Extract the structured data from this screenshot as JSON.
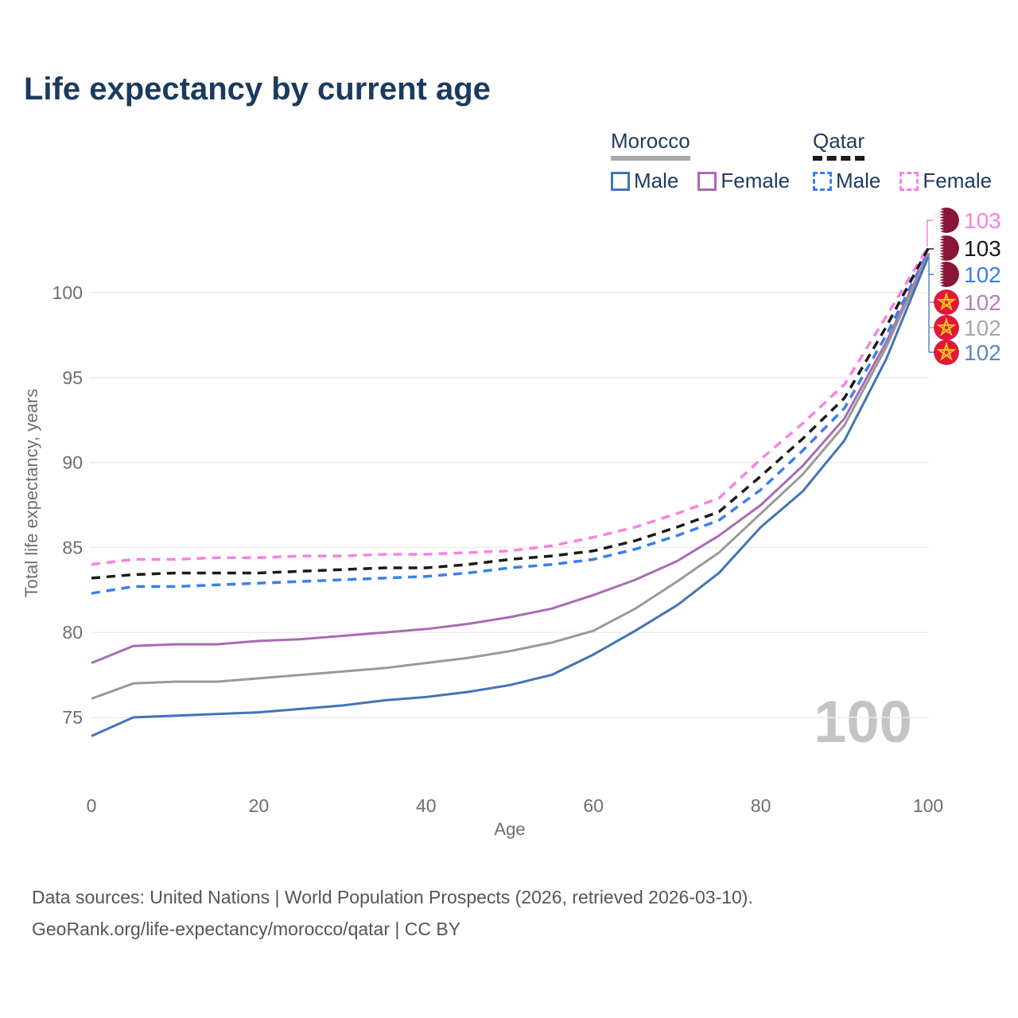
{
  "title": "Life expectancy by current age",
  "legend": {
    "groups": [
      {
        "name": "Morocco",
        "line_style": "solid",
        "underline_color": "#a8a8a8",
        "items": [
          {
            "label": "Male",
            "color": "#4472b8"
          },
          {
            "label": "Female",
            "color": "#a86bb3"
          }
        ]
      },
      {
        "name": "Qatar",
        "line_style": "dashed",
        "underline_color": "#1a1a1a",
        "items": [
          {
            "label": "Male",
            "color": "#3a7ef2"
          },
          {
            "label": "Female",
            "color": "#fb80e3"
          }
        ]
      }
    ]
  },
  "chart_data": {
    "type": "line",
    "title": "Life expectancy by current age",
    "xlabel": "Age",
    "ylabel": "Total life expectancy, years",
    "x_ticks": [
      0,
      20,
      40,
      60,
      80,
      100
    ],
    "y_ticks": [
      75,
      80,
      85,
      90,
      95,
      100
    ],
    "xlim": [
      0,
      100
    ],
    "ylim": [
      73,
      103.5
    ],
    "grid": "horizontal-only",
    "legend_position": "top-right",
    "watermark": "100",
    "ages": [
      0,
      5,
      10,
      15,
      20,
      25,
      30,
      35,
      40,
      45,
      50,
      55,
      60,
      65,
      70,
      75,
      80,
      85,
      90,
      95,
      100
    ],
    "series": [
      {
        "name": "Qatar Female",
        "country": "Qatar",
        "sex": "Female",
        "color": "#fb80e3",
        "dash": true,
        "values": [
          84.0,
          84.3,
          84.3,
          84.4,
          84.4,
          84.5,
          84.5,
          84.6,
          84.6,
          84.7,
          84.8,
          85.1,
          85.6,
          86.2,
          87.0,
          87.9,
          90.2,
          92.3,
          94.6,
          98.6,
          102.7
        ],
        "end_label": "103"
      },
      {
        "name": "Qatar Both sexes",
        "country": "Qatar",
        "sex": "Both",
        "color": "#1a1a1a",
        "dash": true,
        "values": [
          83.2,
          83.4,
          83.5,
          83.5,
          83.5,
          83.6,
          83.7,
          83.8,
          83.8,
          84.0,
          84.3,
          84.5,
          84.8,
          85.4,
          86.2,
          87.1,
          89.2,
          91.4,
          93.8,
          98.0,
          102.6
        ],
        "end_label": "103"
      },
      {
        "name": "Qatar Male",
        "country": "Qatar",
        "sex": "Male",
        "color": "#3a7ef2",
        "dash": true,
        "values": [
          82.3,
          82.7,
          82.7,
          82.8,
          82.9,
          83.0,
          83.1,
          83.2,
          83.3,
          83.5,
          83.8,
          84.0,
          84.3,
          84.9,
          85.7,
          86.6,
          88.4,
          90.7,
          93.2,
          97.5,
          102.4
        ],
        "end_label": "102"
      },
      {
        "name": "Morocco Female",
        "country": "Morocco",
        "sex": "Female",
        "color": "#a86bb3",
        "dash": false,
        "values": [
          78.2,
          79.2,
          79.3,
          79.3,
          79.5,
          79.6,
          79.8,
          80.0,
          80.2,
          80.5,
          80.9,
          81.4,
          82.2,
          83.1,
          84.2,
          85.7,
          87.5,
          89.8,
          92.6,
          97.1,
          102.3
        ],
        "end_label": "102"
      },
      {
        "name": "Morocco Both sexes",
        "country": "Morocco",
        "sex": "Both",
        "color": "#999999",
        "dash": false,
        "values": [
          76.1,
          77.0,
          77.1,
          77.1,
          77.3,
          77.5,
          77.7,
          77.9,
          78.2,
          78.5,
          78.9,
          79.4,
          80.1,
          81.4,
          83.0,
          84.7,
          87.0,
          89.3,
          92.2,
          96.8,
          102.2
        ],
        "end_label": "102"
      },
      {
        "name": "Morocco Male",
        "country": "Morocco",
        "sex": "Male",
        "color": "#4472b8",
        "dash": false,
        "values": [
          73.9,
          75.0,
          75.1,
          75.2,
          75.3,
          75.5,
          75.7,
          76.0,
          76.2,
          76.5,
          76.9,
          77.5,
          78.7,
          80.1,
          81.6,
          83.5,
          86.2,
          88.3,
          91.3,
          96.1,
          102.1
        ],
        "end_label": "102"
      }
    ],
    "end_labels": [
      {
        "value": "103",
        "color": "#fb80e3",
        "flag": "qatar"
      },
      {
        "value": "103",
        "color": "#1a1a1a",
        "flag": "qatar"
      },
      {
        "value": "102",
        "color": "#3a7ef2",
        "flag": "qatar"
      },
      {
        "value": "102",
        "color": "#b57fbc",
        "flag": "morocco"
      },
      {
        "value": "102",
        "color": "#a6a6a6",
        "flag": "morocco"
      },
      {
        "value": "102",
        "color": "#5b86c8",
        "flag": "morocco"
      }
    ],
    "flag_colors": {
      "qatar_maroon": "#8a1538",
      "qatar_white": "#f7f7f7",
      "morocco_red": "#e0173b",
      "morocco_star": "#f5c31d"
    }
  },
  "footer": {
    "line1": "Data sources: United Nations | World Population Prospects (2026, retrieved 2026-03-10).",
    "line2": "GeoRank.org/life-expectancy/morocco/qatar | CC BY"
  }
}
